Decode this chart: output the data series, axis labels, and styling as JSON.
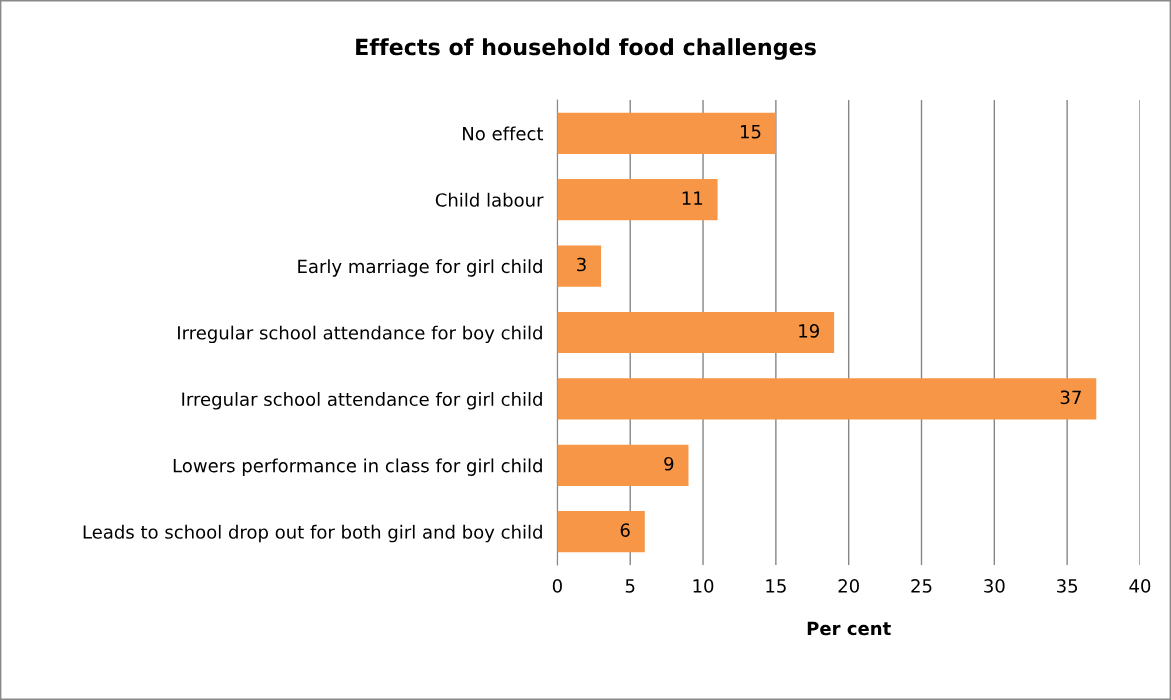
{
  "chart_data": {
    "type": "bar",
    "orientation": "horizontal",
    "title": "Effects of household food challenges",
    "xlabel": "Per cent",
    "categories": [
      "No effect",
      "Child labour",
      "Early marriage for girl child",
      "Irregular school attendance for boy child",
      "Irregular school attendance for girl child",
      "Lowers performance in class for girl child",
      "Leads to school drop out for both girl and boy child"
    ],
    "values": [
      15,
      11,
      3,
      19,
      37,
      9,
      6
    ],
    "color": "#f79646",
    "xlim": [
      0,
      40
    ],
    "xticks": [
      0,
      5,
      10,
      15,
      20,
      25,
      30,
      35,
      40
    ],
    "grid": "x",
    "data_labels": true
  }
}
